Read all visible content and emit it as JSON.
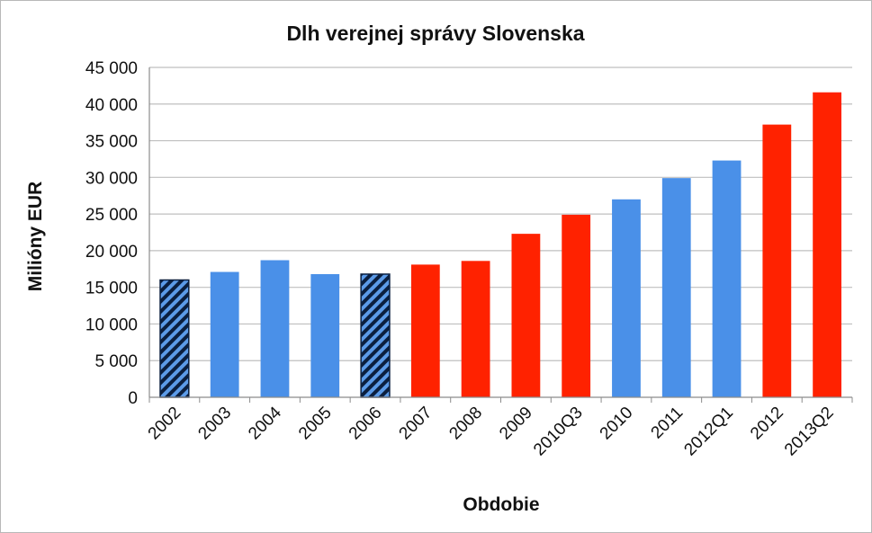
{
  "chart_data": {
    "type": "bar",
    "title": "Dlh verejnej správy Slovenska",
    "xlabel": "Obdobie",
    "ylabel": "Milióny EUR",
    "ylim": [
      0,
      45000
    ],
    "yticks": [
      0,
      5000,
      10000,
      15000,
      20000,
      25000,
      30000,
      35000,
      40000,
      45000
    ],
    "ytick_labels": [
      "0",
      "5 000",
      "10 000",
      "15 000",
      "20 000",
      "25 000",
      "30 000",
      "35 000",
      "40 000",
      "45 000"
    ],
    "grid": true,
    "legend": "none",
    "categories": [
      "2002",
      "2003",
      "2004",
      "2005",
      "2006",
      "2007",
      "2008",
      "2009",
      "2010Q3",
      "2010",
      "2011",
      "2012Q1",
      "2012",
      "2013Q2"
    ],
    "values": [
      16000,
      17100,
      18700,
      16800,
      16800,
      18100,
      18600,
      22300,
      24900,
      27000,
      29900,
      32300,
      37200,
      41600
    ],
    "bar_styles": [
      "hatched-blue",
      "blue",
      "blue",
      "blue",
      "hatched-blue",
      "red",
      "red",
      "red",
      "red",
      "blue",
      "blue",
      "blue",
      "red",
      "red"
    ],
    "colors": {
      "blue": "#4a90e8",
      "red": "#ff2200",
      "hatch_dark": "#0b1f3f",
      "hatch_light": "#5c9be8",
      "grid": "#bfbfbf",
      "axis": "#8c8c8c"
    }
  }
}
